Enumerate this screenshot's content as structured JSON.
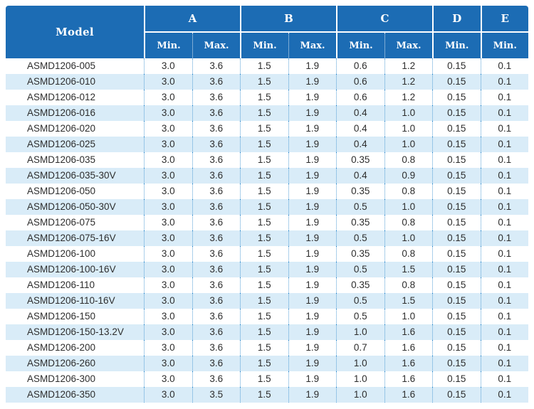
{
  "table": {
    "header": {
      "model_label": "Model",
      "groups": [
        {
          "label": "A",
          "subs": [
            "Min.",
            "Max."
          ]
        },
        {
          "label": "B",
          "subs": [
            "Min.",
            "Max."
          ]
        },
        {
          "label": "C",
          "subs": [
            "Min.",
            "Max."
          ]
        },
        {
          "label": "D",
          "subs": [
            "Min."
          ]
        },
        {
          "label": "E",
          "subs": [
            "Min."
          ]
        }
      ]
    },
    "rows": [
      {
        "model": "ASMD1206-005",
        "values": [
          "3.0",
          "3.6",
          "1.5",
          "1.9",
          "0.6",
          "1.2",
          "0.15",
          "0.1"
        ]
      },
      {
        "model": "ASMD1206-010",
        "values": [
          "3.0",
          "3.6",
          "1.5",
          "1.9",
          "0.6",
          "1.2",
          "0.15",
          "0.1"
        ]
      },
      {
        "model": "ASMD1206-012",
        "values": [
          "3.0",
          "3.6",
          "1.5",
          "1.9",
          "0.6",
          "1.2",
          "0.15",
          "0.1"
        ]
      },
      {
        "model": "ASMD1206-016",
        "values": [
          "3.0",
          "3.6",
          "1.5",
          "1.9",
          "0.4",
          "1.0",
          "0.15",
          "0.1"
        ]
      },
      {
        "model": "ASMD1206-020",
        "values": [
          "3.0",
          "3.6",
          "1.5",
          "1.9",
          "0.4",
          "1.0",
          "0.15",
          "0.1"
        ]
      },
      {
        "model": "ASMD1206-025",
        "values": [
          "3.0",
          "3.6",
          "1.5",
          "1.9",
          "0.4",
          "1.0",
          "0.15",
          "0.1"
        ]
      },
      {
        "model": "ASMD1206-035",
        "values": [
          "3.0",
          "3.6",
          "1.5",
          "1.9",
          "0.35",
          "0.8",
          "0.15",
          "0.1"
        ]
      },
      {
        "model": "ASMD1206-035-30V",
        "values": [
          "3.0",
          "3.6",
          "1.5",
          "1.9",
          "0.4",
          "0.9",
          "0.15",
          "0.1"
        ]
      },
      {
        "model": "ASMD1206-050",
        "values": [
          "3.0",
          "3.6",
          "1.5",
          "1.9",
          "0.35",
          "0.8",
          "0.15",
          "0.1"
        ]
      },
      {
        "model": "ASMD1206-050-30V",
        "values": [
          "3.0",
          "3.6",
          "1.5",
          "1.9",
          "0.5",
          "1.0",
          "0.15",
          "0.1"
        ]
      },
      {
        "model": "ASMD1206-075",
        "values": [
          "3.0",
          "3.6",
          "1.5",
          "1.9",
          "0.35",
          "0.8",
          "0.15",
          "0.1"
        ]
      },
      {
        "model": "ASMD1206-075-16V",
        "values": [
          "3.0",
          "3.6",
          "1.5",
          "1.9",
          "0.5",
          "1.0",
          "0.15",
          "0.1"
        ]
      },
      {
        "model": "ASMD1206-100",
        "values": [
          "3.0",
          "3.6",
          "1.5",
          "1.9",
          "0.35",
          "0.8",
          "0.15",
          "0.1"
        ]
      },
      {
        "model": "ASMD1206-100-16V",
        "values": [
          "3.0",
          "3.6",
          "1.5",
          "1.9",
          "0.5",
          "1.5",
          "0.15",
          "0.1"
        ]
      },
      {
        "model": "ASMD1206-110",
        "values": [
          "3.0",
          "3.6",
          "1.5",
          "1.9",
          "0.35",
          "0.8",
          "0.15",
          "0.1"
        ]
      },
      {
        "model": "ASMD1206-110-16V",
        "values": [
          "3.0",
          "3.6",
          "1.5",
          "1.9",
          "0.5",
          "1.5",
          "0.15",
          "0.1"
        ]
      },
      {
        "model": "ASMD1206-150",
        "values": [
          "3.0",
          "3.6",
          "1.5",
          "1.9",
          "0.5",
          "1.0",
          "0.15",
          "0.1"
        ]
      },
      {
        "model": "ASMD1206-150-13.2V",
        "values": [
          "3.0",
          "3.6",
          "1.5",
          "1.9",
          "1.0",
          "1.6",
          "0.15",
          "0.1"
        ]
      },
      {
        "model": "ASMD1206-200",
        "values": [
          "3.0",
          "3.6",
          "1.5",
          "1.9",
          "0.7",
          "1.6",
          "0.15",
          "0.1"
        ]
      },
      {
        "model": "ASMD1206-260",
        "values": [
          "3.0",
          "3.6",
          "1.5",
          "1.9",
          "1.0",
          "1.6",
          "0.15",
          "0.1"
        ]
      },
      {
        "model": "ASMD1206-300",
        "values": [
          "3.0",
          "3.6",
          "1.5",
          "1.9",
          "1.0",
          "1.6",
          "0.15",
          "0.1"
        ]
      },
      {
        "model": "ASMD1206-350",
        "values": [
          "3.0",
          "3.5",
          "1.5",
          "1.9",
          "1.0",
          "1.6",
          "0.15",
          "0.1"
        ]
      }
    ],
    "colors": {
      "header_bg": "#1c6cb4",
      "header_text": "#ffffff",
      "row_even_bg": "#d9ecf8",
      "row_odd_bg": "#ffffff",
      "divider_dotted": "#56a0d6",
      "body_text": "#2d2d2d",
      "header_bottom_edge": "#9cc7e7"
    }
  }
}
